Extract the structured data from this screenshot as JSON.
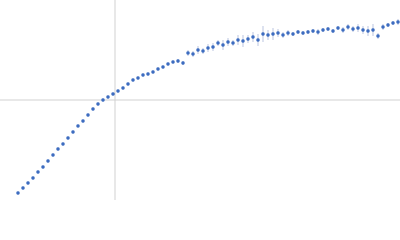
{
  "chart_data": {
    "type": "scatter",
    "color": "#3d6cc0",
    "error_color": "#aab8d8",
    "zero_lines": true,
    "xlim": [
      -115,
      285
    ],
    "ylim": [
      -100,
      100
    ],
    "x": [
      -97,
      -92,
      -87,
      -82,
      -77,
      -72,
      -67,
      -62,
      -57,
      -52,
      -47,
      -42,
      -37,
      -32,
      -27,
      -22,
      -17,
      -12,
      -7,
      -2,
      3,
      8,
      13,
      18,
      23,
      28,
      33,
      38,
      43,
      48,
      53,
      58,
      63,
      68,
      73,
      78,
      83,
      88,
      93,
      98,
      103,
      108,
      113,
      118,
      123,
      128,
      133,
      138,
      143,
      148,
      153,
      158,
      163,
      168,
      173,
      178,
      183,
      188,
      193,
      198,
      203,
      208,
      213,
      218,
      223,
      228,
      233,
      238,
      243,
      248,
      253,
      258,
      263,
      268,
      273,
      278,
      283
    ],
    "values": [
      -93,
      -88,
      -83,
      -78,
      -72,
      -67,
      -61,
      -55,
      -49,
      -44,
      -38,
      -32,
      -26,
      -21,
      -15,
      -9,
      -4,
      0,
      3,
      6,
      9,
      12,
      16,
      20,
      22,
      25,
      26,
      28,
      31,
      33,
      36,
      38,
      39,
      37,
      47,
      46,
      50,
      49,
      52,
      53,
      57,
      55,
      58,
      57,
      60,
      59,
      61,
      63,
      60,
      66,
      65,
      66,
      67,
      65,
      67,
      66,
      68,
      67,
      68,
      69,
      68,
      70,
      71,
      69,
      72,
      70,
      73,
      71,
      72,
      70,
      69,
      70,
      64,
      73,
      75,
      77,
      78
    ],
    "errors": [
      0.5,
      0.5,
      0.5,
      0.5,
      0.5,
      0.5,
      0.5,
      0.5,
      0.5,
      0.5,
      0.5,
      0.5,
      0.5,
      0.5,
      0.5,
      0.5,
      0.5,
      0.5,
      0.5,
      0.5,
      0.5,
      0.5,
      0.5,
      0.5,
      0.5,
      0.5,
      0.5,
      0.5,
      0.5,
      0.5,
      1,
      1,
      2,
      2,
      3,
      3,
      4,
      3,
      4,
      4,
      3,
      5,
      4,
      3,
      5,
      6,
      4,
      5,
      6,
      8,
      5,
      6,
      4,
      3,
      3,
      2,
      2,
      2,
      2,
      2,
      3,
      2,
      2,
      2,
      2,
      3,
      3,
      3,
      4,
      4,
      5,
      6,
      3,
      3,
      2,
      2,
      3
    ]
  }
}
